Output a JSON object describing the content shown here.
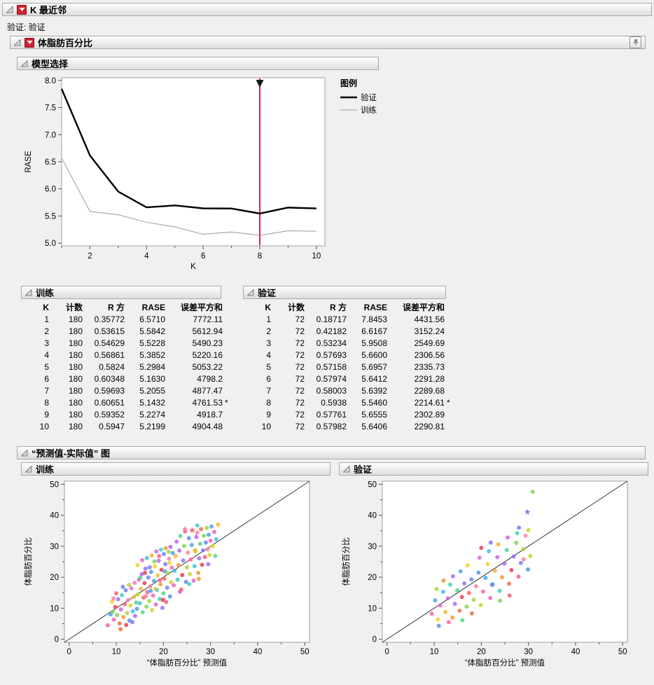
{
  "root": {
    "title": "K 最近邻",
    "validation_text": "验证: 验证"
  },
  "response": {
    "title": "体脂肪百分比"
  },
  "model_selection": {
    "title": "模型选择"
  },
  "actual_by_predicted": {
    "title": "“预测值-实际值” 图"
  },
  "tables": {
    "training": {
      "title": "训练",
      "columns": [
        "K",
        "计数",
        "R 方",
        "RASE",
        "误差平方和"
      ],
      "rows": [
        [
          "1",
          "180",
          "0.35772",
          "6.5710",
          "7772.11",
          ""
        ],
        [
          "2",
          "180",
          "0.53615",
          "5.5842",
          "5612.94",
          ""
        ],
        [
          "3",
          "180",
          "0.54629",
          "5.5228",
          "5490.23",
          ""
        ],
        [
          "4",
          "180",
          "0.56861",
          "5.3852",
          "5220.16",
          ""
        ],
        [
          "5",
          "180",
          "0.5824",
          "5.2984",
          "5053.22",
          ""
        ],
        [
          "6",
          "180",
          "0.60348",
          "5.1630",
          "4798.2",
          ""
        ],
        [
          "7",
          "180",
          "0.59693",
          "5.2055",
          "4877.47",
          ""
        ],
        [
          "8",
          "180",
          "0.60651",
          "5.1432",
          "4761.53",
          "*"
        ],
        [
          "9",
          "180",
          "0.59352",
          "5.2274",
          "4918.7",
          ""
        ],
        [
          "10",
          "180",
          "0.5947",
          "5.2199",
          "4904.48",
          ""
        ]
      ]
    },
    "validation": {
      "title": "验证",
      "columns": [
        "K",
        "计数",
        "R 方",
        "RASE",
        "误差平方和"
      ],
      "rows": [
        [
          "1",
          "72",
          "0.18717",
          "7.8453",
          "4431.56",
          ""
        ],
        [
          "2",
          "72",
          "0.42182",
          "6.6167",
          "3152.24",
          ""
        ],
        [
          "3",
          "72",
          "0.53234",
          "5.9508",
          "2549.69",
          ""
        ],
        [
          "4",
          "72",
          "0.57693",
          "5.6600",
          "2306.56",
          ""
        ],
        [
          "5",
          "72",
          "0.57158",
          "5.6957",
          "2335.73",
          ""
        ],
        [
          "6",
          "72",
          "0.57974",
          "5.6412",
          "2291.28",
          ""
        ],
        [
          "7",
          "72",
          "0.58003",
          "5.6392",
          "2289.68",
          ""
        ],
        [
          "8",
          "72",
          "0.5938",
          "5.5460",
          "2214.61",
          "*"
        ],
        [
          "9",
          "72",
          "0.57761",
          "5.6555",
          "2302.89",
          ""
        ],
        [
          "10",
          "72",
          "0.57982",
          "5.6406",
          "2290.81",
          ""
        ]
      ]
    }
  },
  "palette": [
    "#e8384f",
    "#f25c78",
    "#f97da2",
    "#fb5fa5",
    "#e560c8",
    "#c95ee8",
    "#a466f0",
    "#8472f2",
    "#6b7ff0",
    "#5590e8",
    "#45a5e8",
    "#3ec0dd",
    "#3ecfb6",
    "#4ed488",
    "#77d455",
    "#a4d435",
    "#c9d42a",
    "#e8d420",
    "#f0b62c",
    "#f2952e",
    "#ef6a3a"
  ],
  "chart_data": [
    {
      "type": "line",
      "title": "模型选择",
      "xlabel": "K",
      "ylabel": "RASE",
      "xlim": [
        1,
        10
      ],
      "ylim": [
        5.0,
        8.0
      ],
      "xticks": [
        2,
        4,
        6,
        8,
        10
      ],
      "xticks_minor": [
        1,
        3,
        5,
        7,
        9
      ],
      "yticks": [
        5.0,
        5.5,
        6.0,
        6.5,
        7.0,
        7.5,
        8.0
      ],
      "x": [
        1,
        2,
        3,
        4,
        5,
        6,
        7,
        8,
        9,
        10
      ],
      "series": [
        {
          "name": "验证",
          "color": "#000000",
          "width": 2.4,
          "values": [
            7.8453,
            6.6167,
            5.9508,
            5.66,
            5.6957,
            5.6412,
            5.6392,
            5.546,
            5.6555,
            5.6406
          ]
        },
        {
          "name": "训练",
          "color": "#9a9a9a",
          "width": 1,
          "values": [
            6.571,
            5.5842,
            5.5228,
            5.3852,
            5.2984,
            5.163,
            5.2055,
            5.1432,
            5.2274,
            5.2199
          ]
        }
      ],
      "selected_k": 8,
      "selection_color": "#ce2448",
      "legend_title": "图例",
      "legend_position": "right"
    },
    {
      "type": "scatter",
      "title": "训练",
      "xlabel": "“体脂肪百分比” 预测值",
      "ylabel": "体脂肪百分比",
      "xlim": [
        0,
        50
      ],
      "ylim": [
        0,
        50
      ],
      "ticks_major": [
        0,
        10,
        20,
        30,
        40,
        50
      ],
      "ticks_minor": [
        5,
        15,
        25,
        35,
        45
      ],
      "diagonal": true,
      "points": [
        [
          8.2,
          4.5,
          3
        ],
        [
          8.8,
          8.0,
          10
        ],
        [
          9.1,
          12.1,
          17
        ],
        [
          9.5,
          6.3,
          3
        ],
        [
          9.8,
          10.4,
          0
        ],
        [
          10.2,
          7.8,
          14
        ],
        [
          10.4,
          12.9,
          7
        ],
        [
          10.7,
          5.1,
          20
        ],
        [
          11.0,
          9.6,
          5
        ],
        [
          11.2,
          14.2,
          12
        ],
        [
          11.5,
          7.1,
          19
        ],
        [
          11.8,
          11.3,
          1
        ],
        [
          12.0,
          15.8,
          8
        ],
        [
          12.3,
          8.4,
          15
        ],
        [
          12.5,
          12.6,
          2
        ],
        [
          12.8,
          6.0,
          9
        ],
        [
          13.0,
          10.9,
          16
        ],
        [
          13.2,
          16.4,
          4
        ],
        [
          13.5,
          9.0,
          11
        ],
        [
          13.8,
          13.7,
          18
        ],
        [
          14.0,
          7.5,
          6
        ],
        [
          14.2,
          11.8,
          13
        ],
        [
          10.9,
          3.2,
          20
        ],
        [
          12.1,
          4.6,
          0
        ],
        [
          13.4,
          5.5,
          7
        ],
        [
          9.3,
          8.9,
          14
        ],
        [
          10.0,
          14.8,
          1
        ],
        [
          11.4,
          16.9,
          8
        ],
        [
          12.7,
          17.5,
          15
        ],
        [
          13.9,
          18.2,
          2
        ],
        [
          14.4,
          9.8,
          9
        ],
        [
          14.6,
          14.5,
          16
        ],
        [
          14.8,
          19.2,
          4
        ],
        [
          15.0,
          11.6,
          11
        ],
        [
          15.2,
          16.3,
          18
        ],
        [
          15.4,
          21.0,
          6
        ],
        [
          15.6,
          8.7,
          13
        ],
        [
          15.8,
          13.4,
          20
        ],
        [
          16.0,
          18.1,
          0
        ],
        [
          16.2,
          22.8,
          7
        ],
        [
          16.4,
          10.5,
          14
        ],
        [
          16.6,
          15.2,
          1
        ],
        [
          16.8,
          19.9,
          8
        ],
        [
          17.0,
          12.3,
          15
        ],
        [
          17.2,
          17.0,
          2
        ],
        [
          17.4,
          21.7,
          9
        ],
        [
          17.6,
          9.4,
          16
        ],
        [
          17.8,
          14.1,
          3
        ],
        [
          18.0,
          18.8,
          10
        ],
        [
          18.2,
          23.5,
          17
        ],
        [
          18.4,
          11.2,
          4
        ],
        [
          18.6,
          15.9,
          11
        ],
        [
          18.8,
          20.6,
          18
        ],
        [
          19.0,
          25.3,
          5
        ],
        [
          19.2,
          13.0,
          12
        ],
        [
          19.4,
          17.7,
          19
        ],
        [
          19.6,
          22.4,
          0
        ],
        [
          19.8,
          10.1,
          6
        ],
        [
          20.0,
          14.8,
          13
        ],
        [
          20.2,
          19.5,
          20
        ],
        [
          20.4,
          24.2,
          7
        ],
        [
          20.6,
          12.0,
          1
        ],
        [
          20.8,
          16.6,
          8
        ],
        [
          21.0,
          21.3,
          15
        ],
        [
          21.2,
          26.0,
          2
        ],
        [
          21.4,
          13.8,
          9
        ],
        [
          21.6,
          18.4,
          16
        ],
        [
          21.8,
          23.1,
          3
        ],
        [
          22.0,
          27.8,
          10
        ],
        [
          14.5,
          23.9,
          17
        ],
        [
          15.5,
          25.5,
          4
        ],
        [
          16.5,
          26.2,
          11
        ],
        [
          17.5,
          27.0,
          18
        ],
        [
          18.5,
          28.3,
          5
        ],
        [
          19.5,
          28.9,
          12
        ],
        [
          20.5,
          29.4,
          19
        ],
        [
          21.5,
          29.8,
          6
        ],
        [
          15.1,
          19.8,
          13
        ],
        [
          16.1,
          21.4,
          0
        ],
        [
          17.1,
          23.2,
          7
        ],
        [
          18.1,
          25.1,
          14
        ],
        [
          19.1,
          26.8,
          1
        ],
        [
          20.1,
          27.5,
          8
        ],
        [
          21.1,
          28.2,
          15
        ],
        [
          16.3,
          13.9,
          2
        ],
        [
          17.3,
          15.6,
          9
        ],
        [
          18.3,
          16.2,
          16
        ],
        [
          19.3,
          19.0,
          3
        ],
        [
          20.3,
          21.9,
          10
        ],
        [
          21.3,
          24.6,
          17
        ],
        [
          22.2,
          17.4,
          4
        ],
        [
          22.4,
          22.1,
          11
        ],
        [
          22.6,
          26.8,
          18
        ],
        [
          22.8,
          31.5,
          5
        ],
        [
          23.0,
          19.2,
          12
        ],
        [
          23.2,
          23.9,
          19
        ],
        [
          23.4,
          28.6,
          6
        ],
        [
          23.6,
          33.3,
          13
        ],
        [
          23.8,
          16.0,
          20
        ],
        [
          24.0,
          20.7,
          0
        ],
        [
          24.2,
          25.4,
          7
        ],
        [
          24.4,
          30.1,
          14
        ],
        [
          24.6,
          34.8,
          1
        ],
        [
          24.8,
          18.5,
          8
        ],
        [
          25.0,
          23.2,
          15
        ],
        [
          25.2,
          27.9,
          2
        ],
        [
          25.4,
          32.6,
          9
        ],
        [
          25.6,
          21.0,
          16
        ],
        [
          25.8,
          25.7,
          3
        ],
        [
          26.0,
          30.4,
          10
        ],
        [
          26.2,
          35.1,
          17
        ],
        [
          26.4,
          18.9,
          4
        ],
        [
          26.6,
          23.6,
          11
        ],
        [
          26.8,
          28.3,
          18
        ],
        [
          27.0,
          33.0,
          5
        ],
        [
          27.2,
          36.7,
          12
        ],
        [
          27.4,
          21.4,
          19
        ],
        [
          27.6,
          26.1,
          6
        ],
        [
          27.8,
          30.8,
          13
        ],
        [
          28.0,
          35.5,
          20
        ],
        [
          28.2,
          24.0,
          0
        ],
        [
          28.4,
          28.7,
          7
        ],
        [
          28.6,
          33.4,
          14
        ],
        [
          28.8,
          26.5,
          1
        ],
        [
          29.0,
          31.2,
          8
        ],
        [
          29.2,
          35.9,
          15
        ],
        [
          29.4,
          29.0,
          2
        ],
        [
          29.6,
          33.7,
          9
        ],
        [
          29.8,
          27.2,
          16
        ],
        [
          30.0,
          31.8,
          3
        ],
        [
          30.2,
          36.4,
          10
        ],
        [
          30.5,
          30.0,
          17
        ],
        [
          30.8,
          34.6,
          4
        ],
        [
          31.2,
          32.3,
          11
        ],
        [
          31.6,
          37.0,
          18
        ],
        [
          23.5,
          15.3,
          5
        ],
        [
          25.5,
          17.8,
          12
        ],
        [
          27.5,
          19.5,
          19
        ],
        [
          29.5,
          24.2,
          6
        ],
        [
          31.0,
          26.9,
          13
        ]
      ],
      "asterisks": [
        [
          9.4,
          12.3,
          2
        ],
        [
          19.9,
          11.9,
          0
        ],
        [
          24.6,
          34.7,
          2
        ],
        [
          26.1,
          34.4,
          3
        ],
        [
          27.2,
          33.6,
          2
        ],
        [
          26.7,
          27.9,
          18
        ]
      ]
    },
    {
      "type": "scatter",
      "title": "验证",
      "xlabel": "“体脂肪百分比” 预测值",
      "ylabel": "体脂肪百分比",
      "xlim": [
        0,
        50
      ],
      "ylim": [
        0,
        50
      ],
      "ticks_major": [
        0,
        10,
        20,
        30,
        40,
        50
      ],
      "ticks_minor": [
        5,
        15,
        25,
        35,
        45
      ],
      "diagonal": true,
      "points": [
        [
          9.5,
          8.2,
          3
        ],
        [
          10.2,
          12.5,
          10
        ],
        [
          10.8,
          6.4,
          17
        ],
        [
          11.3,
          10.9,
          4
        ],
        [
          11.9,
          15.3,
          11
        ],
        [
          12.4,
          8.8,
          18
        ],
        [
          12.9,
          13.2,
          5
        ],
        [
          13.4,
          17.6,
          12
        ],
        [
          13.9,
          7.0,
          19
        ],
        [
          14.4,
          11.4,
          6
        ],
        [
          14.9,
          15.8,
          13
        ],
        [
          15.4,
          9.2,
          20
        ],
        [
          15.9,
          13.6,
          0
        ],
        [
          16.4,
          18.0,
          7
        ],
        [
          16.9,
          10.5,
          14
        ],
        [
          17.4,
          14.9,
          1
        ],
        [
          17.9,
          19.3,
          8
        ],
        [
          18.4,
          12.7,
          15
        ],
        [
          18.9,
          17.1,
          2
        ],
        [
          19.4,
          21.5,
          9
        ],
        [
          19.9,
          11.0,
          16
        ],
        [
          20.4,
          15.4,
          3
        ],
        [
          20.9,
          19.8,
          10
        ],
        [
          21.4,
          24.2,
          17
        ],
        [
          21.9,
          13.3,
          4
        ],
        [
          22.4,
          17.7,
          11
        ],
        [
          22.9,
          22.1,
          18
        ],
        [
          23.4,
          26.5,
          5
        ],
        [
          23.9,
          15.6,
          12
        ],
        [
          24.4,
          20.0,
          19
        ],
        [
          24.9,
          24.4,
          6
        ],
        [
          25.4,
          28.8,
          13
        ],
        [
          25.9,
          17.9,
          20
        ],
        [
          26.4,
          22.3,
          0
        ],
        [
          26.9,
          26.7,
          7
        ],
        [
          27.4,
          31.1,
          14
        ],
        [
          27.9,
          20.2,
          1
        ],
        [
          28.4,
          24.6,
          8
        ],
        [
          28.9,
          29.0,
          15
        ],
        [
          29.4,
          33.4,
          2
        ],
        [
          29.9,
          22.5,
          9
        ],
        [
          30.4,
          26.9,
          16
        ],
        [
          30.9,
          47.6,
          14
        ],
        [
          13.1,
          5.5,
          3
        ],
        [
          15.6,
          21.9,
          10
        ],
        [
          17.1,
          23.8,
          17
        ],
        [
          19.6,
          26.3,
          4
        ],
        [
          21.6,
          28.4,
          11
        ],
        [
          23.6,
          30.6,
          18
        ],
        [
          25.6,
          32.8,
          5
        ],
        [
          27.6,
          34.2,
          12
        ],
        [
          12.0,
          18.9,
          19
        ],
        [
          14.0,
          20.3,
          6
        ],
        [
          16.0,
          6.1,
          13
        ],
        [
          18.0,
          8.3,
          20
        ],
        [
          20.0,
          29.5,
          0
        ],
        [
          22.0,
          31.2,
          7
        ],
        [
          24.0,
          12.4,
          14
        ],
        [
          26.0,
          14.1,
          1
        ],
        [
          28.0,
          36.0,
          8
        ],
        [
          10.5,
          16.2,
          15
        ],
        [
          29.0,
          25.8,
          2
        ],
        [
          11.0,
          4.3,
          9
        ],
        [
          30.0,
          35.2,
          16
        ]
      ],
      "asterisks": [
        [
          29.8,
          40.3,
          7
        ],
        [
          22.3,
          16.7,
          8
        ]
      ]
    }
  ]
}
